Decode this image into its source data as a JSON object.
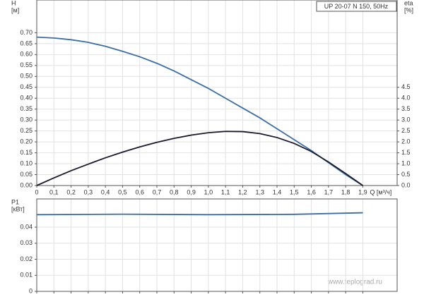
{
  "chart_data": [
    {
      "type": "line",
      "title": "UP 20-07 N 150, 50Hz",
      "ylabel": "H",
      "yunit": "[м]",
      "y2label": "eta",
      "y2unit": "[%]",
      "xlabel": "Q [м³/ч]",
      "watermark": "www.teplograd.ru",
      "xlim": [
        0,
        2.1
      ],
      "ylim": [
        0,
        0.85
      ],
      "y2lim": [
        0,
        8.5
      ],
      "grid": true,
      "xticks": [
        {
          "value": 0,
          "label": "0"
        },
        {
          "value": 0.1,
          "label": "0,1"
        },
        {
          "value": 0.2,
          "label": "0,2"
        },
        {
          "value": 0.3,
          "label": "0,3"
        },
        {
          "value": 0.4,
          "label": "0,4"
        },
        {
          "value": 0.5,
          "label": "0,5"
        },
        {
          "value": 0.6,
          "label": "0,6"
        },
        {
          "value": 0.7,
          "label": "0,7"
        },
        {
          "value": 0.8,
          "label": "0,8"
        },
        {
          "value": 0.9,
          "label": "0,9"
        },
        {
          "value": 1.0,
          "label": "1,0"
        },
        {
          "value": 1.1,
          "label": "1,1"
        },
        {
          "value": 1.2,
          "label": "1,2"
        },
        {
          "value": 1.3,
          "label": "1,3"
        },
        {
          "value": 1.4,
          "label": "1,4"
        },
        {
          "value": 1.5,
          "label": "1,5"
        },
        {
          "value": 1.6,
          "label": "1,6"
        },
        {
          "value": 1.7,
          "label": "1,7"
        },
        {
          "value": 1.8,
          "label": "1,8"
        },
        {
          "value": 1.9,
          "label": "1,9"
        }
      ],
      "yticks": [
        {
          "value": 0,
          "label": "0.00"
        },
        {
          "value": 0.05,
          "label": "0.05"
        },
        {
          "value": 0.1,
          "label": "0.10"
        },
        {
          "value": 0.15,
          "label": "0.15"
        },
        {
          "value": 0.2,
          "label": "0.20"
        },
        {
          "value": 0.25,
          "label": "0.25"
        },
        {
          "value": 0.3,
          "label": "0.30"
        },
        {
          "value": 0.35,
          "label": "0.35"
        },
        {
          "value": 0.4,
          "label": "0.40"
        },
        {
          "value": 0.45,
          "label": "0.45"
        },
        {
          "value": 0.5,
          "label": "0.50"
        },
        {
          "value": 0.55,
          "label": "0.55"
        },
        {
          "value": 0.6,
          "label": "0.60"
        },
        {
          "value": 0.65,
          "label": "0.65"
        },
        {
          "value": 0.7,
          "label": "0.70"
        }
      ],
      "y2ticks": [
        {
          "value": 0,
          "label": "0.0"
        },
        {
          "value": 0.5,
          "label": "0.5"
        },
        {
          "value": 1,
          "label": "1.0"
        },
        {
          "value": 1.5,
          "label": "1.5"
        },
        {
          "value": 2,
          "label": "2.0"
        },
        {
          "value": 2.5,
          "label": "2.5"
        },
        {
          "value": 3,
          "label": "3.0"
        },
        {
          "value": 3.5,
          "label": "3.5"
        },
        {
          "value": 4,
          "label": "4.0"
        },
        {
          "value": 4.5,
          "label": "4.5"
        }
      ],
      "x": [
        0,
        0.1,
        0.2,
        0.3,
        0.4,
        0.5,
        0.6,
        0.7,
        0.8,
        0.9,
        1.0,
        1.1,
        1.2,
        1.3,
        1.4,
        1.5,
        1.6,
        1.7,
        1.8,
        1.9
      ],
      "series": [
        {
          "color": "#3b6ea5",
          "values": [
            0.68,
            0.676,
            0.668,
            0.656,
            0.638,
            0.615,
            0.59,
            0.56,
            0.525,
            0.485,
            0.445,
            0.4,
            0.355,
            0.31,
            0.26,
            0.21,
            0.16,
            0.105,
            0.05,
            0
          ]
        },
        {
          "color": "#1a1a2e",
          "axis": "y2",
          "values": [
            0,
            0.35,
            0.68,
            0.98,
            1.27,
            1.53,
            1.77,
            1.98,
            2.16,
            2.31,
            2.42,
            2.48,
            2.47,
            2.38,
            2.2,
            1.93,
            1.56,
            1.08,
            0.55,
            0
          ]
        }
      ]
    },
    {
      "type": "line",
      "ylabel": "P1",
      "yunit": "[кВт]",
      "xlim": [
        0,
        2.1
      ],
      "ylim": [
        0,
        0.0576
      ],
      "grid": true,
      "xticks": [
        0,
        0.1,
        0.2,
        0.3,
        0.4,
        0.5,
        0.6,
        0.7,
        0.8,
        0.9,
        1,
        1.1,
        1.2,
        1.3,
        1.4,
        1.5,
        1.6,
        1.7,
        1.8,
        1.9
      ],
      "yticks": [
        0,
        0.01,
        0.02,
        0.03,
        0.04
      ],
      "x": [
        0,
        0.5,
        1.0,
        1.5,
        1.9
      ],
      "series": [
        {
          "color": "#3b6ea5",
          "values": [
            0.0478,
            0.0481,
            0.0478,
            0.048,
            0.049
          ]
        }
      ]
    }
  ]
}
